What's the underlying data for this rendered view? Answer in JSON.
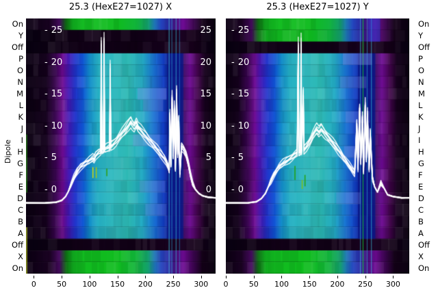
{
  "chart_data": {
    "type": "heatmap",
    "subtype": "heatmap-with-line-overlay",
    "ylabel": "Dipole",
    "row_labels": [
      "On",
      "Y",
      "Off",
      "P",
      "O",
      "N",
      "M",
      "L",
      "K",
      "J",
      "I",
      "H",
      "G",
      "F",
      "E",
      "D",
      "C",
      "B",
      "A",
      "Off",
      "X",
      "On"
    ],
    "x_ticks": [
      0,
      50,
      100,
      150,
      200,
      250,
      300
    ],
    "overlay_ticks": [
      25,
      20,
      15,
      10,
      5,
      0
    ],
    "legend": "none",
    "grid": "off",
    "palette": {
      "background_dark": "#0b0112",
      "purple": "#6e0b94",
      "blue": "#0f55d6",
      "teal": "#2fbac0",
      "green": "#12bc20",
      "navy_stripe": "#0a1684",
      "cyan_line": "#3fd4ea",
      "curve": "#ffffff",
      "text": "#000000",
      "inner_text": "#ffffff"
    },
    "row_gradients": {
      "signal": [
        [
          -14,
          "#0b0112"
        ],
        [
          22,
          "#14021c"
        ],
        [
          40,
          "#3c0554"
        ],
        [
          52,
          "#6e0b94"
        ],
        [
          62,
          "#4517b4"
        ],
        [
          74,
          "#2133cc"
        ],
        [
          88,
          "#0f55d6"
        ],
        [
          100,
          "#128dcc"
        ],
        [
          115,
          "#25b0c4"
        ],
        [
          140,
          "#2fbac0"
        ],
        [
          170,
          "#2cb9b4"
        ],
        [
          195,
          "#23acc6"
        ],
        [
          215,
          "#1973d4"
        ],
        [
          232,
          "#1240c8"
        ],
        [
          243,
          "#0c1e96"
        ],
        [
          262,
          "#0c1886"
        ],
        [
          270,
          "#481070"
        ],
        [
          280,
          "#6e0b94"
        ],
        [
          294,
          "#44064e"
        ],
        [
          307,
          "#17021e"
        ],
        [
          329,
          "#0a0110"
        ]
      ],
      "on": [
        [
          -14,
          "#0b0112"
        ],
        [
          28,
          "#1a0322"
        ],
        [
          46,
          "#470a60"
        ],
        [
          58,
          "#0e6e14"
        ],
        [
          70,
          "#10a81e"
        ],
        [
          90,
          "#12bc20"
        ],
        [
          150,
          "#0fbc1e"
        ],
        [
          185,
          "#12b43c"
        ],
        [
          205,
          "#14a06e"
        ],
        [
          216,
          "#1e78b4"
        ],
        [
          228,
          "#2446c0"
        ],
        [
          240,
          "#2a2ea8"
        ],
        [
          252,
          "#40127e"
        ],
        [
          268,
          "#6e0b94"
        ],
        [
          286,
          "#3c0550"
        ],
        [
          302,
          "#140218"
        ],
        [
          329,
          "#0a0110"
        ]
      ],
      "off": [
        [
          -14,
          "#070010"
        ],
        [
          40,
          "#0e0114"
        ],
        [
          100,
          "#120117"
        ],
        [
          180,
          "#100115"
        ],
        [
          232,
          "#16021c"
        ],
        [
          262,
          "#1c0424"
        ],
        [
          288,
          "#150119"
        ],
        [
          329,
          "#070010"
        ]
      ]
    },
    "panels": [
      {
        "title": "25.3 (HexE27=1027) X",
        "xlim": [
          -14,
          326
        ],
        "overlay_labels_left": true,
        "overlay_labels_right": true,
        "rows": [
          "on",
          "off",
          "off",
          "signal",
          "signal",
          "signal",
          "signal",
          "signal",
          "signal",
          "signal",
          "signal",
          "signal",
          "signal",
          "signal",
          "signal",
          "signal",
          "signal",
          "signal",
          "signal",
          "off",
          "on",
          "on"
        ],
        "gains": [
          1,
          1,
          1,
          1.02,
          0.96,
          1.05,
          1.0,
          0.95,
          1.03,
          0.98,
          1.05,
          1.0,
          0.96,
          1.02,
          0.98,
          1.04,
          0.95,
          1.0,
          0.92,
          1,
          1,
          1
        ],
        "stripes": [
          {
            "u0": 239,
            "u1": 268,
            "color": "#0a1684",
            "alpha": 0.78,
            "rows": [
              3,
              18
            ]
          },
          {
            "u0": 242,
            "u1": 243.4,
            "color": "#3fd4ea",
            "alpha": 0.65,
            "rows": [
              0,
              21
            ]
          },
          {
            "u0": 247,
            "u1": 248.2,
            "color": "#35c2ea",
            "alpha": 0.55,
            "rows": [
              0,
              21
            ]
          },
          {
            "u0": 254.5,
            "u1": 255.8,
            "color": "#3fd4ea",
            "alpha": 0.6,
            "rows": [
              0,
              21
            ]
          },
          {
            "u0": 260.8,
            "u1": 262,
            "color": "#2fa8e0",
            "alpha": 0.5,
            "rows": [
              0,
              21
            ]
          },
          {
            "u0": -14,
            "u1": -11.5,
            "color": "#2fa01a",
            "alpha": 0.55,
            "rows": [
              10,
              14
            ]
          },
          {
            "u0": -14,
            "u1": -11.5,
            "color": "#b8c81c",
            "alpha": 0.6,
            "rows": [
              18,
              21
            ]
          }
        ],
        "patches": [
          {
            "row": 6,
            "u0": 186,
            "u1": 238,
            "color": "#8693e2",
            "alpha": 0.36
          },
          {
            "row": 7,
            "u0": 196,
            "u1": 232,
            "color": "#8693e2",
            "alpha": 0.28
          },
          {
            "row": 10,
            "u0": 178,
            "u1": 226,
            "color": "#8693e2",
            "alpha": 0.32
          },
          {
            "row": 14,
            "u0": 190,
            "u1": 236,
            "color": "#8693e2",
            "alpha": 0.26
          },
          {
            "row": 16,
            "u0": 200,
            "u1": 238,
            "color": "#8693e2",
            "alpha": 0.24
          }
        ],
        "marks": [
          {
            "u": 105,
            "v0": 1.9,
            "v1": 3.6,
            "color": "#c6d81f"
          },
          {
            "u": 111,
            "v0": 1.9,
            "v1": 3.6,
            "color": "#9fc41a"
          },
          {
            "u": 130,
            "v0": 2.2,
            "v1": 3.4,
            "color": "#2f9e17"
          }
        ],
        "curve": [
          [
            -14,
            -2
          ],
          [
            20,
            -2
          ],
          [
            40,
            -1.9
          ],
          [
            50,
            -1.6
          ],
          [
            57,
            -1.0
          ],
          [
            62,
            -0.2
          ],
          [
            67,
            0.9
          ],
          [
            72,
            2.0
          ],
          [
            78,
            3.0
          ],
          [
            84,
            3.7
          ],
          [
            92,
            4.2
          ],
          [
            99,
            4.6
          ],
          [
            106,
            5.1
          ],
          [
            108,
            4.9
          ],
          [
            111,
            5.5
          ],
          [
            116,
            5.9
          ],
          [
            120,
            6.1
          ],
          [
            121,
            22.6
          ],
          [
            122,
            6.2
          ],
          [
            125,
            6.3
          ],
          [
            126,
            23.2
          ],
          [
            127,
            6.4
          ],
          [
            131,
            6.6
          ],
          [
            136,
            6.8
          ],
          [
            137,
            19.0
          ],
          [
            138,
            7.0
          ],
          [
            143,
            7.3
          ],
          [
            148,
            7.7
          ],
          [
            153,
            8.3
          ],
          [
            158,
            8.9
          ],
          [
            163,
            9.4
          ],
          [
            166,
            9.8
          ],
          [
            170,
            10.3
          ],
          [
            174,
            10.8
          ],
          [
            176,
            10.4
          ],
          [
            180,
            9.9
          ],
          [
            184,
            10.5
          ],
          [
            187,
            9.8
          ],
          [
            192,
            9.4
          ],
          [
            197,
            8.9
          ],
          [
            202,
            8.4
          ],
          [
            207,
            7.8
          ],
          [
            214,
            7.1
          ],
          [
            221,
            6.4
          ],
          [
            228,
            5.7
          ],
          [
            234,
            5.0
          ],
          [
            238,
            4.4
          ],
          [
            241,
            3.7
          ],
          [
            243,
            3.0
          ],
          [
            244,
            11.8
          ],
          [
            246,
            4.0
          ],
          [
            248,
            14.5
          ],
          [
            250,
            5.4
          ],
          [
            252,
            12.9
          ],
          [
            254,
            3.4
          ],
          [
            256,
            15.2
          ],
          [
            258,
            5.8
          ],
          [
            260,
            10.9
          ],
          [
            262,
            2.6
          ],
          [
            265,
            6.9
          ],
          [
            269,
            6.4
          ],
          [
            273,
            5.6
          ],
          [
            277,
            4.2
          ],
          [
            281,
            2.4
          ],
          [
            285,
            1.0
          ],
          [
            290,
            0.1
          ],
          [
            296,
            -0.5
          ],
          [
            303,
            -0.9
          ],
          [
            312,
            -1.1
          ],
          [
            326,
            -1.2
          ]
        ]
      },
      {
        "title": "25.3 (HexE27=1027) Y",
        "xlim": [
          0,
          329
        ],
        "overlay_labels_left": true,
        "overlay_labels_right": false,
        "rows": [
          "on",
          "on",
          "off",
          "signal",
          "signal",
          "signal",
          "signal",
          "signal",
          "signal",
          "signal",
          "signal",
          "signal",
          "signal",
          "signal",
          "signal",
          "signal",
          "signal",
          "signal",
          "signal",
          "off",
          "on",
          "on"
        ],
        "gains": [
          1,
          0.97,
          1,
          1.03,
          0.97,
          1.0,
          1.05,
          0.96,
          1.02,
          1.0,
          0.95,
          1.04,
          0.98,
          1.02,
          0.96,
          1.03,
          0.97,
          1.0,
          0.93,
          1,
          1,
          1
        ],
        "stripes": [
          {
            "u0": 237,
            "u1": 268,
            "color": "#0a1684",
            "alpha": 0.78,
            "rows": [
              3,
              18
            ]
          },
          {
            "u0": 245.4,
            "u1": 246.8,
            "color": "#17c92e",
            "alpha": 0.8,
            "rows": [
              0,
              21
            ]
          },
          {
            "u0": 240.8,
            "u1": 242,
            "color": "#3fd4ea",
            "alpha": 0.6,
            "rows": [
              0,
              21
            ]
          },
          {
            "u0": 252.8,
            "u1": 254,
            "color": "#35c2ea",
            "alpha": 0.55,
            "rows": [
              0,
              21
            ]
          },
          {
            "u0": 260.5,
            "u1": 261.8,
            "color": "#3fd4ea",
            "alpha": 0.6,
            "rows": [
              0,
              21
            ]
          },
          {
            "u0": 255,
            "u1": 277,
            "color": "#1d49e0",
            "alpha": 0.45,
            "rows": [
              0,
              1
            ]
          }
        ],
        "patches": [
          {
            "row": 3,
            "u0": 210,
            "u1": 262,
            "color": "#8693e2",
            "alpha": 0.38
          },
          {
            "row": 5,
            "u0": 205,
            "u1": 252,
            "color": "#8693e2",
            "alpha": 0.28
          },
          {
            "row": 8,
            "u0": 215,
            "u1": 258,
            "color": "#8693e2",
            "alpha": 0.26
          },
          {
            "row": 11,
            "u0": 212,
            "u1": 260,
            "color": "#8693e2",
            "alpha": 0.32
          },
          {
            "row": 15,
            "u0": 198,
            "u1": 242,
            "color": "#8693e2",
            "alpha": 0.24
          }
        ],
        "marks": [
          {
            "u": 123,
            "v0": 1.6,
            "v1": 3.8,
            "color": "#23a318"
          },
          {
            "u": 136,
            "v0": 0.2,
            "v1": 1.6,
            "color": "#7fc01c"
          },
          {
            "u": 141,
            "v0": 0.6,
            "v1": 2.4,
            "color": "#23a318"
          }
        ],
        "curve": [
          [
            0,
            -2
          ],
          [
            40,
            -2
          ],
          [
            55,
            -1.8
          ],
          [
            64,
            -1.3
          ],
          [
            71,
            -0.5
          ],
          [
            76,
            0.5
          ],
          [
            81,
            1.5
          ],
          [
            86,
            2.4
          ],
          [
            91,
            3.1
          ],
          [
            96,
            3.7
          ],
          [
            102,
            4.2
          ],
          [
            108,
            4.6
          ],
          [
            114,
            4.9
          ],
          [
            119,
            5.2
          ],
          [
            123,
            5.5
          ],
          [
            128,
            5.8
          ],
          [
            130,
            22.4
          ],
          [
            131,
            5.9
          ],
          [
            134,
            6.1
          ],
          [
            135,
            23.0
          ],
          [
            136,
            6.2
          ],
          [
            139,
            15.0
          ],
          [
            140,
            6.4
          ],
          [
            145,
            6.9
          ],
          [
            149,
            7.4
          ],
          [
            153,
            8.0
          ],
          [
            156,
            8.6
          ],
          [
            160,
            9.2
          ],
          [
            163,
            9.6
          ],
          [
            167,
            9.2
          ],
          [
            171,
            9.7
          ],
          [
            175,
            9.2
          ],
          [
            178,
            8.8
          ],
          [
            182,
            8.4
          ],
          [
            187,
            7.9
          ],
          [
            192,
            7.4
          ],
          [
            197,
            6.9
          ],
          [
            202,
            6.3
          ],
          [
            207,
            5.7
          ],
          [
            211,
            5.1
          ],
          [
            216,
            4.5
          ],
          [
            221,
            3.9
          ],
          [
            226,
            3.3
          ],
          [
            231,
            2.7
          ],
          [
            235,
            10.4
          ],
          [
            237,
            3.4
          ],
          [
            240,
            12.7
          ],
          [
            242,
            4.4
          ],
          [
            245,
            11.4
          ],
          [
            247,
            2.9
          ],
          [
            250,
            13.4
          ],
          [
            252,
            4.9
          ],
          [
            254,
            11.9
          ],
          [
            257,
            3.4
          ],
          [
            259,
            8.9
          ],
          [
            263,
            1.9
          ],
          [
            267,
            0.5
          ],
          [
            272,
            -0.3
          ],
          [
            278,
            1.1
          ],
          [
            284,
            0.3
          ],
          [
            290,
            -0.7
          ],
          [
            300,
            -1.0
          ],
          [
            315,
            -1.2
          ],
          [
            329,
            -1.2
          ]
        ]
      }
    ]
  }
}
